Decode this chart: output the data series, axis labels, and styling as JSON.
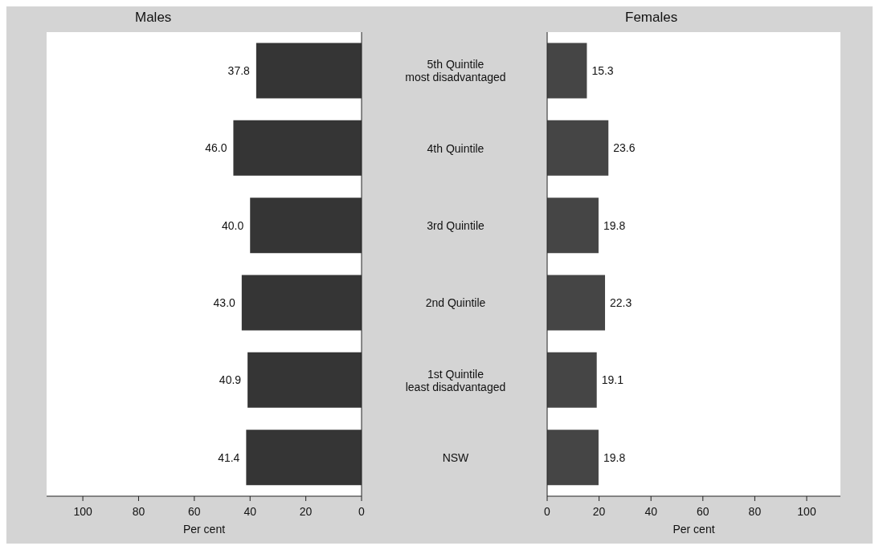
{
  "chart_data": [
    {
      "type": "bar",
      "orientation": "horizontal",
      "title": "Males",
      "xlabel": "Per cent",
      "categories": [
        "5th Quintile\nmost disadvantaged",
        "4th Quintile",
        "3rd Quintile",
        "2nd Quintile",
        "1st Quintile\nleast disadvantaged",
        "NSW"
      ],
      "values": [
        37.8,
        46.0,
        40.0,
        43.0,
        40.9,
        41.4
      ],
      "value_labels": [
        "37.8",
        "46.0",
        "40.0",
        "43.0",
        "40.9",
        "41.4"
      ],
      "color": "#353535",
      "xlim": [
        113,
        0
      ],
      "xticks": [
        100,
        80,
        60,
        40,
        20,
        0
      ],
      "grid": false
    },
    {
      "type": "bar",
      "orientation": "horizontal",
      "title": "Females",
      "xlabel": "Per cent",
      "values": [
        15.3,
        23.6,
        19.8,
        22.3,
        19.1,
        19.8
      ],
      "value_labels": [
        "15.3",
        "23.6",
        "19.8",
        "22.3",
        "19.1",
        "19.8"
      ],
      "color": "#454545",
      "xlim": [
        0,
        113
      ],
      "xticks": [
        0,
        20,
        40,
        60,
        80,
        100
      ],
      "grid": false,
      "tick_labels": "x"
    }
  ]
}
